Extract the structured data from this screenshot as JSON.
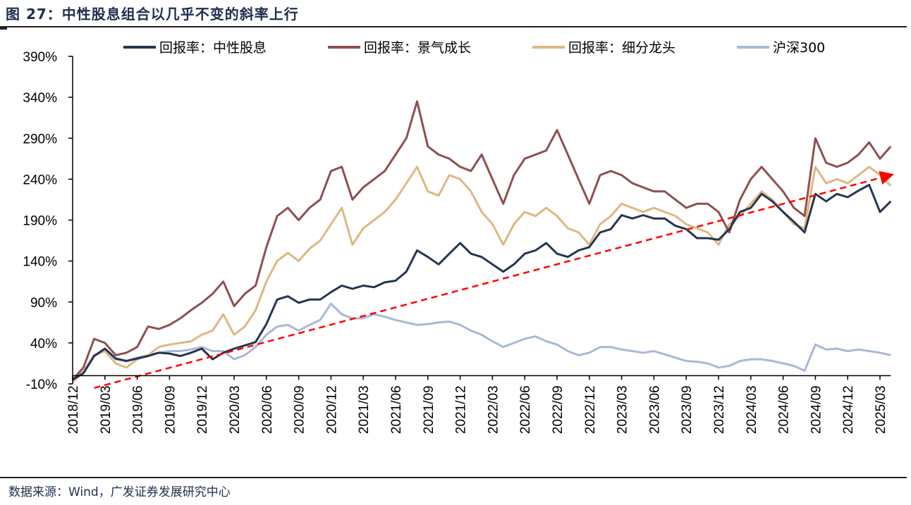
{
  "title": "图 27：中性股息组合以几乎不变的斜率上行",
  "source": "数据来源：Wind，广发证券发展研究中心",
  "chart_data": {
    "type": "line",
    "title": "图 27：中性股息组合以几乎不变的斜率上行",
    "xlabel": "",
    "ylabel": "",
    "ylim": [
      -10,
      390
    ],
    "yticks": [
      -10,
      40,
      90,
      140,
      190,
      240,
      290,
      340,
      390
    ],
    "ytick_labels": [
      "-10%",
      "40%",
      "90%",
      "140%",
      "190%",
      "240%",
      "290%",
      "340%",
      "390%"
    ],
    "xtick_labels": [
      "2018/12",
      "2019/03",
      "2019/06",
      "2019/09",
      "2019/12",
      "2020/03",
      "2020/06",
      "2020/09",
      "2020/12",
      "2021/03",
      "2021/06",
      "2021/09",
      "2021/12",
      "2022/03",
      "2022/06",
      "2022/09",
      "2022/12",
      "2023/03",
      "2023/06",
      "2023/09",
      "2023/12",
      "2024/03",
      "2024/06",
      "2024/09",
      "2024/12",
      "2025/03"
    ],
    "x_axis_crosses_at": 0,
    "grid": false,
    "legend_placement": "top",
    "x": [
      "2018/12",
      "2019/01",
      "2019/02",
      "2019/03",
      "2019/04",
      "2019/05",
      "2019/06",
      "2019/07",
      "2019/08",
      "2019/09",
      "2019/10",
      "2019/11",
      "2019/12",
      "2020/01",
      "2020/02",
      "2020/03",
      "2020/04",
      "2020/05",
      "2020/06",
      "2020/07",
      "2020/08",
      "2020/09",
      "2020/10",
      "2020/11",
      "2020/12",
      "2021/01",
      "2021/02",
      "2021/03",
      "2021/04",
      "2021/05",
      "2021/06",
      "2021/07",
      "2021/08",
      "2021/09",
      "2021/10",
      "2021/11",
      "2021/12",
      "2022/01",
      "2022/02",
      "2022/03",
      "2022/04",
      "2022/05",
      "2022/06",
      "2022/07",
      "2022/08",
      "2022/09",
      "2022/10",
      "2022/11",
      "2022/12",
      "2023/01",
      "2023/02",
      "2023/03",
      "2023/04",
      "2023/05",
      "2023/06",
      "2023/07",
      "2023/08",
      "2023/09",
      "2023/10",
      "2023/11",
      "2023/12",
      "2024/01",
      "2024/02",
      "2024/03",
      "2024/04",
      "2024/05",
      "2024/06",
      "2024/07",
      "2024/08",
      "2024/09",
      "2024/10",
      "2024/11",
      "2024/12",
      "2025/01",
      "2025/02",
      "2025/03",
      "2025/04"
    ],
    "series": [
      {
        "name": "回报率：中性股息",
        "color": "#243550",
        "values": [
          -5,
          3,
          24,
          33,
          21,
          18,
          21,
          24,
          28,
          27,
          24,
          28,
          33,
          20,
          28,
          33,
          37,
          41,
          63,
          93,
          97,
          89,
          93,
          93,
          102,
          110,
          106,
          110,
          108,
          114,
          116,
          127,
          153,
          145,
          136,
          149,
          162,
          149,
          145,
          136,
          127,
          136,
          149,
          153,
          162,
          149,
          145,
          153,
          157,
          175,
          179,
          196,
          192,
          196,
          192,
          192,
          183,
          179,
          168,
          168,
          166,
          179,
          200,
          205,
          222,
          213,
          200,
          188,
          175,
          222,
          213,
          222,
          218,
          226,
          233,
          200,
          213
        ]
      },
      {
        "name": "回报率：景气成长",
        "color": "#8f4f4f",
        "values": [
          -5,
          10,
          45,
          40,
          25,
          28,
          35,
          60,
          57,
          62,
          70,
          80,
          89,
          100,
          115,
          85,
          100,
          110,
          157,
          195,
          205,
          190,
          205,
          215,
          250,
          255,
          215,
          230,
          240,
          250,
          270,
          290,
          335,
          280,
          270,
          265,
          255,
          250,
          270,
          240,
          210,
          245,
          265,
          270,
          275,
          300,
          270,
          240,
          210,
          245,
          250,
          245,
          235,
          230,
          225,
          225,
          215,
          205,
          210,
          210,
          200,
          175,
          215,
          240,
          255,
          240,
          225,
          205,
          195,
          290,
          260,
          255,
          260,
          270,
          285,
          265,
          280
        ]
      },
      {
        "name": "回报率：细分龙头",
        "color": "#ddb882",
        "values": [
          -8,
          5,
          25,
          30,
          15,
          10,
          20,
          25,
          35,
          38,
          40,
          42,
          50,
          55,
          75,
          50,
          60,
          80,
          115,
          140,
          150,
          140,
          155,
          165,
          185,
          205,
          160,
          180,
          190,
          200,
          215,
          235,
          255,
          225,
          220,
          245,
          240,
          225,
          200,
          185,
          160,
          185,
          200,
          195,
          205,
          195,
          180,
          175,
          160,
          185,
          195,
          210,
          205,
          200,
          205,
          200,
          195,
          185,
          180,
          175,
          160,
          185,
          195,
          210,
          225,
          215,
          200,
          185,
          180,
          255,
          235,
          240,
          235,
          245,
          255,
          245,
          232
        ]
      },
      {
        "name": "沪深300",
        "color": "#a9b8d6",
        "values": [
          -5,
          5,
          25,
          30,
          20,
          18,
          22,
          25,
          28,
          30,
          30,
          32,
          35,
          30,
          30,
          20,
          25,
          35,
          50,
          60,
          62,
          55,
          62,
          68,
          88,
          75,
          70,
          70,
          75,
          72,
          68,
          65,
          62,
          63,
          65,
          66,
          62,
          55,
          50,
          42,
          35,
          40,
          45,
          48,
          42,
          38,
          30,
          25,
          28,
          35,
          35,
          32,
          30,
          28,
          30,
          26,
          22,
          18,
          17,
          15,
          10,
          12,
          18,
          20,
          20,
          18,
          15,
          12,
          6,
          38,
          32,
          33,
          30,
          32,
          30,
          28,
          25
        ]
      }
    ],
    "annotations": [
      {
        "type": "arrow",
        "style": "dashed",
        "color": "#ff0000",
        "from": [
          "2019/02",
          -15
        ],
        "to": [
          "2025/04",
          245
        ]
      }
    ]
  }
}
